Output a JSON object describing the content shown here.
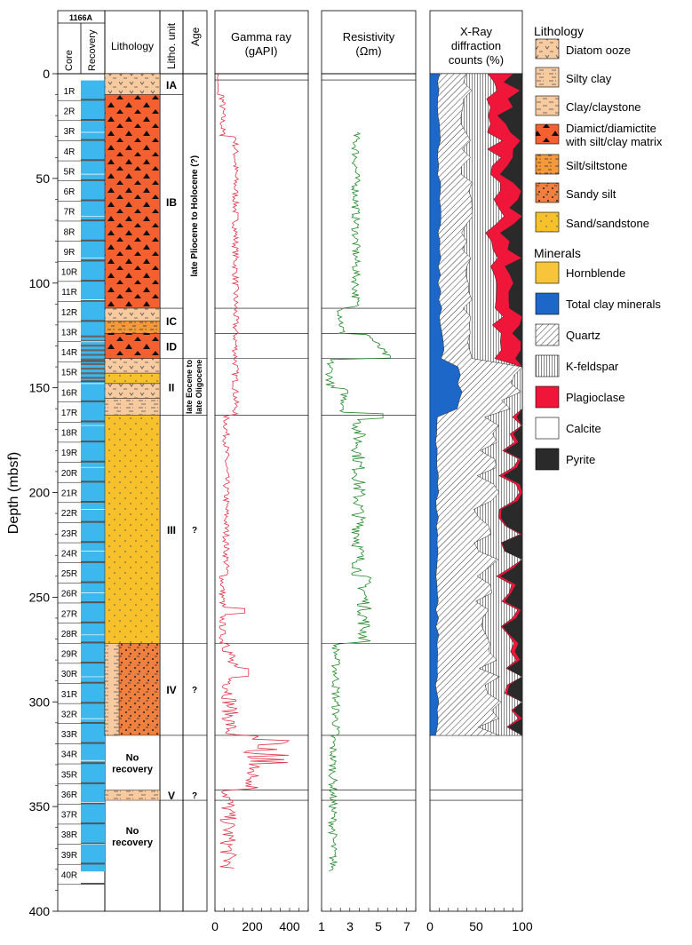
{
  "site": "1166A",
  "headers": {
    "core": "Core",
    "recovery": "Recovery",
    "lithology": "Lithology",
    "litho_unit": "Litho. unit",
    "age": "Age",
    "gamma_title": "Gamma  ray",
    "gamma_unit": "(gAPI)",
    "res_title": "Resistivity",
    "res_unit": "(Ωm)",
    "xrd_title": "X-Ray",
    "xrd_title2": "diffraction",
    "xrd_title3": "counts (%)"
  },
  "y_axis": {
    "label": "Depth (mbsf)",
    "ticks": [
      "0",
      "50",
      "100",
      "150",
      "200",
      "250",
      "300",
      "350",
      "400"
    ]
  },
  "gamma_ticks": [
    "0",
    "200",
    "400"
  ],
  "res_ticks": [
    "1",
    "3",
    "5",
    "7"
  ],
  "xrd_ticks": [
    "0",
    "50",
    "100"
  ],
  "cores": [
    "1R",
    "2R",
    "3R",
    "4R",
    "5R",
    "6R",
    "7R",
    "8R",
    "9R",
    "10R",
    "11R",
    "12R",
    "13R",
    "14R",
    "15R",
    "16R",
    "17R",
    "18R",
    "19R",
    "20R",
    "21R",
    "22R",
    "23R",
    "24R",
    "25R",
    "26R",
    "27R",
    "28R",
    "29R",
    "30R",
    "31R",
    "32R",
    "33R",
    "34R",
    "35R",
    "36R",
    "37R",
    "38R",
    "39R",
    "40R"
  ],
  "units": [
    {
      "label": "IA",
      "top": 0,
      "bottom": 10
    },
    {
      "label": "IB",
      "top": 10,
      "bottom": 112
    },
    {
      "label": "IC",
      "top": 112,
      "bottom": 124
    },
    {
      "label": "ID",
      "top": 124,
      "bottom": 136
    },
    {
      "label": "II",
      "top": 136,
      "bottom": 163
    },
    {
      "label": "III",
      "top": 163,
      "bottom": 272
    },
    {
      "label": "IV",
      "top": 272,
      "bottom": 316
    },
    {
      "label": "V",
      "top": 342,
      "bottom": 347
    }
  ],
  "ages": [
    {
      "label": "late Pliocene to Holocene (?)",
      "top": 0,
      "bottom": 136
    },
    {
      "label": "late Eocene to late Oligocene",
      "top": 136,
      "bottom": 163
    },
    {
      "label": "?",
      "top": 163,
      "bottom": 272
    },
    {
      "label": "?",
      "top": 272,
      "bottom": 316
    },
    {
      "label": "?",
      "top": 342,
      "bottom": 347
    }
  ],
  "no_recovery": [
    {
      "line1": "No",
      "line2": "recovery",
      "top": 316,
      "bottom": 342
    },
    {
      "line1": "No",
      "line2": "recovery",
      "top": 347,
      "bottom": 381
    }
  ],
  "legend": {
    "lithology_title": "Lithology",
    "lithology": [
      {
        "lines": [
          "Diatom ooze"
        ],
        "color": "#f8caa0",
        "pattern": "diatom"
      },
      {
        "lines": [
          "Silty clay"
        ],
        "color": "#f8caa0",
        "pattern": "silty"
      },
      {
        "lines": [
          "Clay/claystone"
        ],
        "color": "#f8caa0",
        "pattern": "clay"
      },
      {
        "lines": [
          "Diamict/diamictite",
          "with silt/clay matrix"
        ],
        "color": "#f4602f",
        "pattern": "diamict"
      },
      {
        "lines": [
          "Silt/siltstone"
        ],
        "color": "#f59a3a",
        "pattern": "silt"
      },
      {
        "lines": [
          "Sandy silt"
        ],
        "color": "#f08040",
        "pattern": "sandysilt"
      },
      {
        "lines": [
          "Sand/sandstone"
        ],
        "color": "#f6c12a",
        "pattern": "sand"
      }
    ],
    "minerals_title": "Minerals",
    "minerals": [
      {
        "label": "Hornblende",
        "color": "#f8c43a",
        "pattern": "solid"
      },
      {
        "label": "Total clay minerals",
        "color": "#1c67c8",
        "pattern": "solid"
      },
      {
        "label": "Quartz",
        "color": "#ffffff",
        "pattern": "diag"
      },
      {
        "label": "K-feldspar",
        "color": "#ffffff",
        "pattern": "vert"
      },
      {
        "label": "Plagioclase",
        "color": "#f0163a",
        "pattern": "solid"
      },
      {
        "label": "Calcite",
        "color": "#ffffff",
        "pattern": "solid"
      },
      {
        "label": "Pyrite",
        "color": "#2a2a2a",
        "pattern": "solid"
      }
    ]
  },
  "colors": {
    "recovery": "#3cb8ee",
    "gamma": "#e0344a",
    "resistivity": "#22882a",
    "diamict": "#f4602f",
    "sand": "#f6c12a",
    "sandysilt": "#f08040",
    "clay": "#f8caa0",
    "silt": "#f59a3a"
  }
}
